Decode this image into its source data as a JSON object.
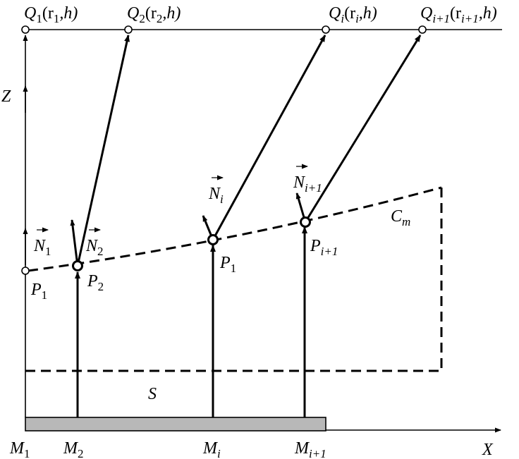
{
  "labels": {
    "q1": {
      "main": "Q",
      "sub": "1",
      "args": "(r",
      "asub": "1",
      "tail": ",h)"
    },
    "q2": {
      "main": "Q",
      "sub": "2",
      "args": "(r",
      "asub": "2",
      "tail": ",h)"
    },
    "qi": {
      "main": "Q",
      "sub": "i",
      "args": "(r",
      "asub": "i",
      "tail": ",h)"
    },
    "qi1": {
      "main": "Q",
      "sub": "i+1",
      "args": "(r",
      "asub": "i+1",
      "tail": ",h)"
    },
    "z_axis": "Z",
    "x_axis": "X",
    "n1": {
      "main": "N",
      "sub": "1"
    },
    "n2": {
      "main": "N",
      "sub": "2"
    },
    "ni": {
      "main": "N",
      "sub": "i"
    },
    "ni1": {
      "main": "N",
      "sub": "i+1"
    },
    "p1_left": {
      "main": "P",
      "sub": "1"
    },
    "p2": {
      "main": "P",
      "sub": "2"
    },
    "p1_mid": {
      "main": "P",
      "sub": "1"
    },
    "pi1": {
      "main": "P",
      "sub": "i+1"
    },
    "cm": {
      "main": "C",
      "sub": "m"
    },
    "s": "S",
    "m1": {
      "main": "M",
      "sub": "1"
    },
    "m2": {
      "main": "M",
      "sub": "2"
    },
    "mi": {
      "main": "M",
      "sub": "i"
    },
    "mi1": {
      "main": "M",
      "sub": "i+1"
    }
  },
  "colors": {
    "line": "#000000",
    "plate_fill": "#b8b8b8",
    "background": "#ffffff"
  }
}
